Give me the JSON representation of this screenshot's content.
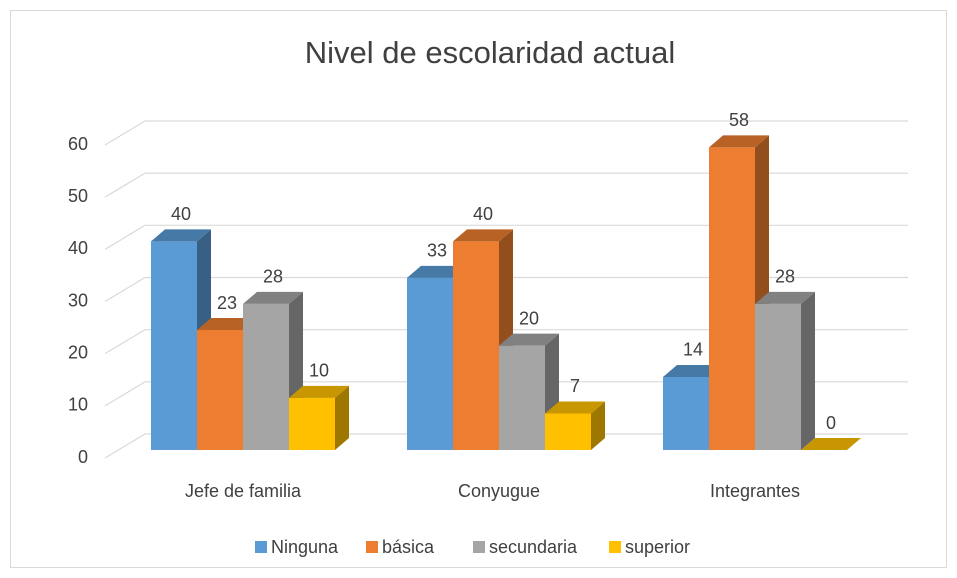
{
  "chart_data": {
    "type": "bar3d",
    "title": "Nivel de escolaridad actual",
    "categories": [
      "Jefe de familia",
      "Conyugue",
      "Integrantes"
    ],
    "series": [
      {
        "name": "Ninguna",
        "color": "#5b9bd5",
        "values": [
          40,
          33,
          14
        ]
      },
      {
        "name": "básica",
        "color": "#ed7d31",
        "values": [
          23,
          40,
          58
        ]
      },
      {
        "name": "secundaria",
        "color": "#a5a5a5",
        "values": [
          28,
          20,
          28
        ]
      },
      {
        "name": "superior",
        "color": "#ffc000",
        "values": [
          10,
          7,
          0
        ]
      }
    ],
    "ylim": [
      0,
      60
    ],
    "yticks": [
      0,
      10,
      20,
      30,
      40,
      50,
      60
    ],
    "grid": true,
    "legend": "bottom"
  }
}
